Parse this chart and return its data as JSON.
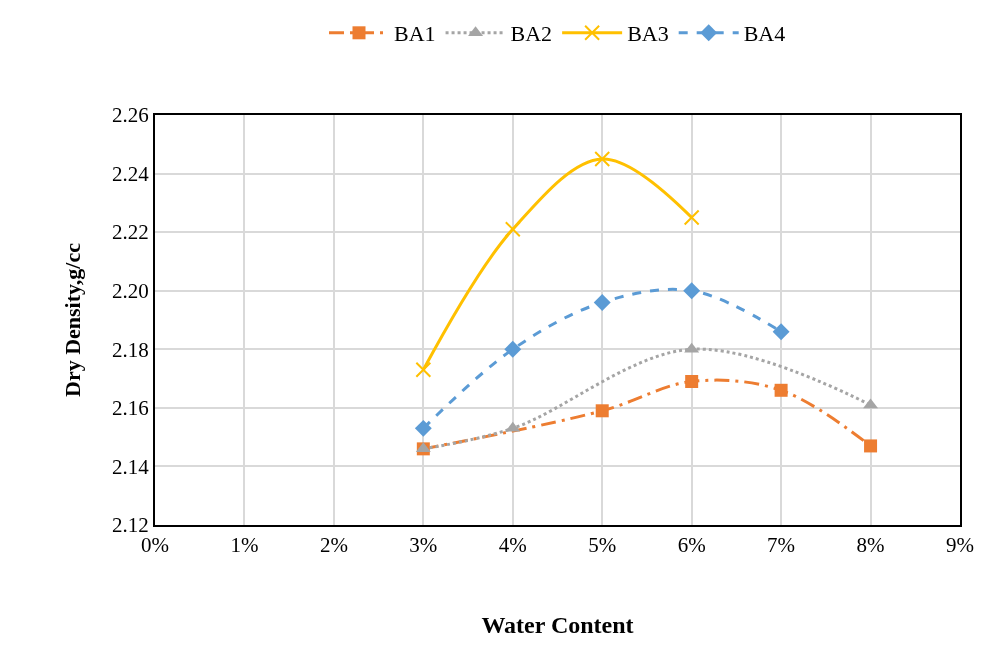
{
  "chart_data": {
    "type": "line",
    "xlabel": "Water Content",
    "ylabel": "Dry Density,g/cc",
    "xlim": [
      0,
      9
    ],
    "xticks": [
      {
        "value": 0,
        "label": "0%"
      },
      {
        "value": 1,
        "label": "1%"
      },
      {
        "value": 2,
        "label": "2%"
      },
      {
        "value": 3,
        "label": "3%"
      },
      {
        "value": 4,
        "label": "4%"
      },
      {
        "value": 5,
        "label": "5%"
      },
      {
        "value": 6,
        "label": "6%"
      },
      {
        "value": 7,
        "label": "7%"
      },
      {
        "value": 8,
        "label": "8%"
      },
      {
        "value": 9,
        "label": "9%"
      }
    ],
    "ylim": [
      2.12,
      2.26
    ],
    "yticks": [
      {
        "value": 2.12,
        "label": "2.12"
      },
      {
        "value": 2.14,
        "label": "2.14"
      },
      {
        "value": 2.16,
        "label": "2.16"
      },
      {
        "value": 2.18,
        "label": "2.18"
      },
      {
        "value": 2.2,
        "label": "2.20"
      },
      {
        "value": 2.22,
        "label": "2.22"
      },
      {
        "value": 2.24,
        "label": "2.24"
      },
      {
        "value": 2.26,
        "label": "2.26"
      }
    ],
    "grid": true,
    "legend": "top",
    "series": [
      {
        "name": "BA1",
        "color": "#ed7d31",
        "marker": "square",
        "line_style": "dashdot",
        "x": [
          3,
          5,
          6,
          7,
          8
        ],
        "values": [
          2.146,
          2.159,
          2.169,
          2.166,
          2.147
        ]
      },
      {
        "name": "BA2",
        "color": "#a5a5a5",
        "marker": "triangle",
        "line_style": "dotted",
        "x": [
          3,
          4,
          6,
          8
        ],
        "values": [
          2.146,
          2.153,
          2.18,
          2.161
        ]
      },
      {
        "name": "BA3",
        "color": "#ffc000",
        "marker": "cross",
        "line_style": "solid",
        "x": [
          3,
          4,
          5,
          6
        ],
        "values": [
          2.173,
          2.221,
          2.245,
          2.225
        ]
      },
      {
        "name": "BA4",
        "color": "#5b9bd5",
        "marker": "diamond",
        "line_style": "dashed",
        "x": [
          3,
          4,
          5,
          6,
          7
        ],
        "values": [
          2.153,
          2.18,
          2.196,
          2.2,
          2.186
        ]
      }
    ]
  }
}
